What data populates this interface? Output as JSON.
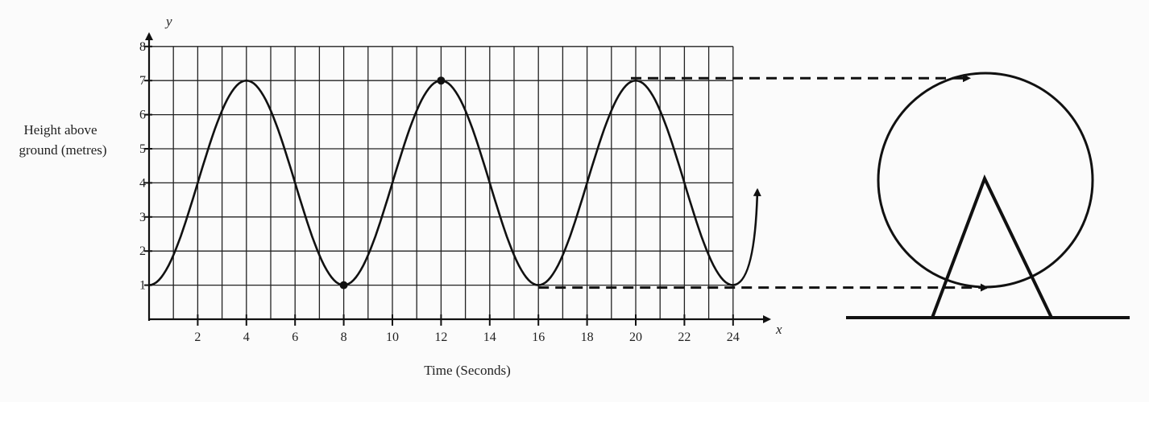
{
  "chart_data": {
    "type": "line",
    "xlabel": "Time (Seconds)",
    "ylabel_lines": [
      "Height above",
      "ground (metres)"
    ],
    "x_axis_name": "x",
    "y_axis_name": "y",
    "xlim": [
      0,
      24
    ],
    "ylim": [
      0,
      8
    ],
    "xticks": [
      2,
      4,
      6,
      8,
      10,
      12,
      14,
      16,
      18,
      20,
      22,
      24
    ],
    "yticks": [
      1,
      2,
      3,
      4,
      5,
      6,
      7,
      8
    ],
    "grid": true,
    "series": [
      {
        "x": [
          0,
          4,
          8,
          12,
          16,
          20,
          24
        ],
        "y": [
          1,
          7,
          1,
          7,
          1,
          7,
          1
        ],
        "curve": "sinusoidal",
        "continues_after": [
          25,
          3.8
        ]
      }
    ],
    "marked_points": [
      {
        "x": 8,
        "y": 1
      },
      {
        "x": 12,
        "y": 7
      }
    ],
    "dashed_arrows": [
      {
        "from": [
          20,
          7
        ],
        "to": "top-of-wheel"
      },
      {
        "from": [
          16,
          1
        ],
        "to": "bottom-of-wheel"
      }
    ]
  },
  "colors": {
    "ink": "#111111",
    "grid": "#222222",
    "background": "#fbfbfb"
  },
  "illustration": {
    "type": "ferris-wheel"
  }
}
